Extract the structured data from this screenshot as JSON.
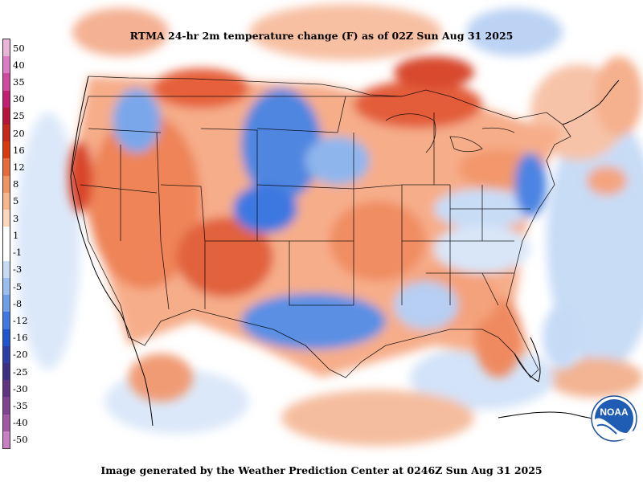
{
  "title": "RTMA 24-hr 2m temperature change (F) as of 02Z Sun Aug 31 2025",
  "footer": "Image generated by the Weather Prediction Center at 0246Z Sun Aug 31 2025",
  "logo": {
    "text": "NOAA",
    "icon": "noaa-logo"
  },
  "legend": {
    "labels": [
      "50",
      "40",
      "35",
      "30",
      "25",
      "20",
      "16",
      "12",
      "8",
      "5",
      "3",
      "1",
      "-1",
      "-3",
      "-5",
      "-8",
      "-12",
      "-16",
      "-20",
      "-25",
      "-30",
      "-35",
      "-40",
      "-50"
    ],
    "colors": [
      "#e8b4d8",
      "#dd7cc4",
      "#cf4a9c",
      "#c21e72",
      "#b51536",
      "#c6281e",
      "#d83a10",
      "#e96a3c",
      "#f29364",
      "#f7b68e",
      "#fbd6bd",
      "#ffffff",
      "#ffffff",
      "#c7dbf5",
      "#9cbdef",
      "#6f9ee6",
      "#3e78e0",
      "#1f56cf",
      "#2d3ea6",
      "#3c2f84",
      "#5e357e",
      "#7e4490",
      "#a05aa4",
      "#c980c2"
    ]
  },
  "colors": {
    "warm_light": "#f7b79a",
    "warm_mid": "#f08a5f",
    "warm_strong": "#e0532f",
    "warm_deep": "#c9301d",
    "cool_light": "#c8dcf6",
    "cool_mid": "#8fb6ec",
    "cool_strong": "#3e7ae0",
    "cool_deep": "#2e5ed0"
  }
}
